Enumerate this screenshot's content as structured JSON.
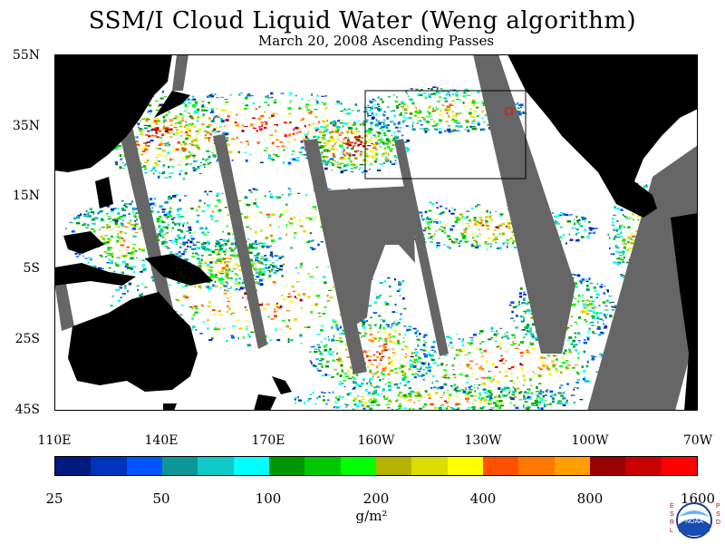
{
  "title": "SSM/I Cloud Liquid Water (Weng algorithm)",
  "subtitle": "March 20, 2008  Ascending Passes",
  "lat_labels": [
    "55N",
    "35N",
    "15N",
    "5S",
    "25S",
    "45S"
  ],
  "lon_labels": [
    "110E",
    "140E",
    "170E",
    "160W",
    "130W",
    "100W",
    "70W"
  ],
  "colorbar": {
    "tick_labels": [
      "25",
      "50",
      "100",
      "200",
      "400",
      "800",
      "1600"
    ],
    "units": "g/m²",
    "colors": [
      "#001a80",
      "#0033bb",
      "#0055ff",
      "#0c9696",
      "#10c8c8",
      "#00ffff",
      "#009600",
      "#00c800",
      "#00ff00",
      "#b4b400",
      "#dcdc00",
      "#ffff00",
      "#ff5000",
      "#ff7800",
      "#ffa000",
      "#960000",
      "#c80000",
      "#ff0000"
    ]
  },
  "logo": {
    "name": "noaa-logo",
    "side_text_left": "ESRL",
    "side_text_right": "PSD",
    "center_text": "NOAA"
  },
  "map_colors": {
    "land": "#000000",
    "no_data": "#666666",
    "clear": "#ffffff"
  },
  "annotations": {
    "outline_box": "black rectangle",
    "marker": "red square"
  }
}
